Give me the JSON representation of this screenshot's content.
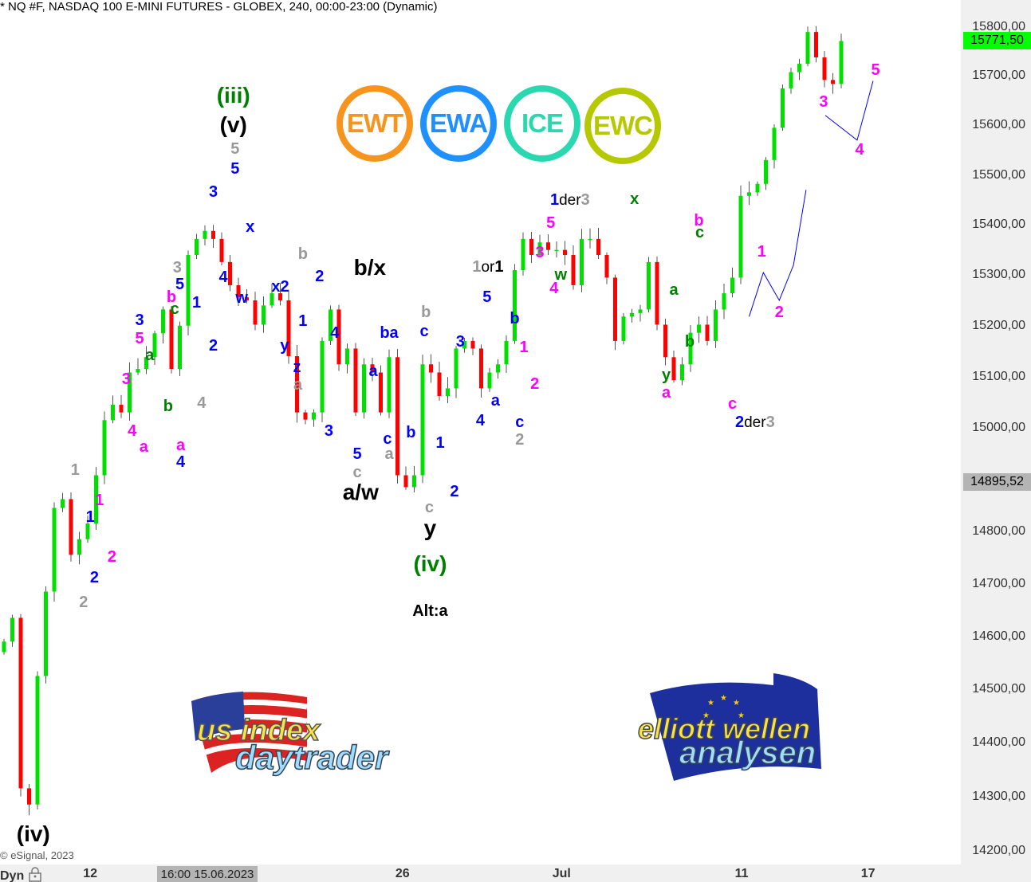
{
  "header": {
    "title": "* NQ #F, NASDAQ 100 E-MINI FUTURES - GLOBEX, 240, 00:00-23:00 (Dynamic)"
  },
  "footer": {
    "copyright": "© eSignal, 2023",
    "dyn_label": "Dyn",
    "lock_icon": "lock-icon"
  },
  "colors": {
    "up": "#00e000",
    "down": "#ff0000",
    "blue": "#0000ff",
    "magenta": "#ff00ff",
    "gray": "#999999",
    "green": "#008000",
    "black": "#000000",
    "last_price_tag": "#00ff00",
    "crosshair_tag": "#b4b4b4"
  },
  "logos": [
    {
      "text": "EWT",
      "color": "#f7941d"
    },
    {
      "text": "EWA",
      "color": "#1e90ff"
    },
    {
      "text": "ICE",
      "color": "#2ad8b0"
    },
    {
      "text": "EWC",
      "color": "#b5c800"
    }
  ],
  "brands": {
    "left": {
      "line1": "us index",
      "line2": "daytrader"
    },
    "right": {
      "line1": "elliott wellen",
      "line2": "analysen"
    }
  },
  "chart_data": {
    "type": "candlestick",
    "yscale": "log",
    "ylim": [
      14150,
      15900
    ],
    "y_ticks": [
      "15800,00",
      "15700,00",
      "15600,00",
      "15500,00",
      "15400,00",
      "15300,00",
      "15200,00",
      "15100,00",
      "15000,00",
      "14800,00",
      "14700,00",
      "14600,00",
      "14500,00",
      "14400,00",
      "14300,00",
      "14200,00"
    ],
    "y_tick_values": [
      15800,
      15700,
      15600,
      15500,
      15400,
      15300,
      15200,
      15100,
      15000,
      14800,
      14700,
      14600,
      14500,
      14400,
      14300,
      14200
    ],
    "last_price": {
      "label": "15771,50",
      "value": 15771.5
    },
    "crosshair_price": {
      "label": "14895,52",
      "value": 14895.52
    },
    "crosshair_time": "16:00 15.06.2023",
    "x_ticks": [
      {
        "label": "12",
        "bar": 10.3
      },
      {
        "label": "26",
        "bar": 47.6
      },
      {
        "label": "Jul",
        "bar": 66.6
      },
      {
        "label": "11",
        "bar": 88.1
      },
      {
        "label": "17",
        "bar": 103.2
      }
    ],
    "closes": [
      14590,
      14635,
      14315,
      14285,
      14525,
      14685,
      14845,
      14862,
      14755,
      14785,
      14815,
      14908,
      15015,
      15045,
      15030,
      15108,
      15115,
      15138,
      15185,
      15232,
      15115,
      15200,
      15340,
      15372,
      15388,
      15372,
      15326,
      15280,
      15256,
      15250,
      15202,
      15240,
      15264,
      15250,
      15140,
      15030,
      15016,
      15030,
      15170,
      15232,
      15124,
      15155,
      15030,
      15124,
      15108,
      15030,
      15138,
      14908,
      14885,
      14908,
      15124,
      15108,
      15062,
      15077,
      15155,
      15170,
      15155,
      15077,
      15108,
      15124,
      15170,
      15310,
      15372,
      15340,
      15365,
      15350,
      15350,
      15340,
      15280,
      15372,
      15372,
      15340,
      15295,
      15170,
      15218,
      15225,
      15232,
      15326,
      15202,
      15138,
      15093,
      15124,
      15186,
      15202,
      15170,
      15232,
      15264,
      15295,
      15458,
      15465,
      15482,
      15530,
      15595,
      15675,
      15708,
      15725,
      15790,
      15738,
      15692,
      15684,
      15771.5
    ],
    "trendlines": [
      [
        [
          89.0,
          15218
        ],
        [
          90.7,
          15305
        ],
        [
          92.6,
          15250
        ],
        [
          94.3,
          15320
        ],
        [
          95.8,
          15470
        ]
      ],
      [
        [
          98.1,
          15620
        ],
        [
          101.9,
          15570
        ],
        [
          103.8,
          15690
        ]
      ]
    ],
    "wave_labels": [
      {
        "parts": [
          {
            "t": "(iii)",
            "c": "green"
          }
        ],
        "bar": 27.4,
        "price": 15660,
        "big": true
      },
      {
        "parts": [
          {
            "t": "(v)",
            "c": "black"
          }
        ],
        "bar": 27.4,
        "price": 15600,
        "big": true
      },
      {
        "parts": [
          {
            "t": "5",
            "c": "gray"
          }
        ],
        "bar": 27.6,
        "price": 15552
      },
      {
        "parts": [
          {
            "t": "5",
            "c": "blue"
          }
        ],
        "bar": 27.6,
        "price": 15512
      },
      {
        "parts": [
          {
            "t": "3",
            "c": "blue"
          }
        ],
        "bar": 25,
        "price": 15465
      },
      {
        "parts": [
          {
            "t": "x",
            "c": "blue"
          }
        ],
        "bar": 29.4,
        "price": 15396
      },
      {
        "parts": [
          {
            "t": "4",
            "c": "blue"
          }
        ],
        "bar": 26.2,
        "price": 15296
      },
      {
        "parts": [
          {
            "t": "w",
            "c": "blue"
          }
        ],
        "bar": 28.4,
        "price": 15254
      },
      {
        "parts": [
          {
            "t": "3",
            "c": "gray"
          }
        ],
        "bar": 20.7,
        "price": 15315
      },
      {
        "parts": [
          {
            "t": "5",
            "c": "blue"
          }
        ],
        "bar": 21,
        "price": 15281
      },
      {
        "parts": [
          {
            "t": "b",
            "c": "magenta"
          }
        ],
        "bar": 20,
        "price": 15257
      },
      {
        "parts": [
          {
            "t": "c",
            "c": "green"
          }
        ],
        "bar": 20.4,
        "price": 15233
      },
      {
        "parts": [
          {
            "t": "1",
            "c": "blue"
          }
        ],
        "bar": 23,
        "price": 15245
      },
      {
        "parts": [
          {
            "t": "2",
            "c": "blue"
          }
        ],
        "bar": 25,
        "price": 15161
      },
      {
        "parts": [
          {
            "t": "4",
            "c": "gray"
          }
        ],
        "bar": 23.6,
        "price": 15048
      },
      {
        "parts": [
          {
            "t": "3",
            "c": "blue"
          }
        ],
        "bar": 16.2,
        "price": 15211
      },
      {
        "parts": [
          {
            "t": "5",
            "c": "magenta"
          }
        ],
        "bar": 16.2,
        "price": 15175
      },
      {
        "parts": [
          {
            "t": "a",
            "c": "green"
          }
        ],
        "bar": 17.4,
        "price": 15141
      },
      {
        "parts": [
          {
            "t": "3",
            "c": "magenta"
          }
        ],
        "bar": 14.6,
        "price": 15095
      },
      {
        "parts": [
          {
            "t": "b",
            "c": "green"
          }
        ],
        "bar": 19.6,
        "price": 15042
      },
      {
        "parts": [
          {
            "t": "4",
            "c": "magenta"
          }
        ],
        "bar": 15.3,
        "price": 14994
      },
      {
        "parts": [
          {
            "t": "a",
            "c": "magenta"
          }
        ],
        "bar": 16.7,
        "price": 14963
      },
      {
        "parts": [
          {
            "t": "a",
            "c": "magenta"
          }
        ],
        "bar": 21.1,
        "price": 14966
      },
      {
        "parts": [
          {
            "t": "4",
            "c": "blue"
          }
        ],
        "bar": 21.1,
        "price": 14934
      },
      {
        "parts": [
          {
            "t": "1",
            "c": "gray"
          }
        ],
        "bar": 8.5,
        "price": 14918
      },
      {
        "parts": [
          {
            "t": "1",
            "c": "magenta"
          }
        ],
        "bar": 11.4,
        "price": 14859
      },
      {
        "parts": [
          {
            "t": "1",
            "c": "blue"
          }
        ],
        "bar": 10.3,
        "price": 14827
      },
      {
        "parts": [
          {
            "t": "2",
            "c": "magenta"
          }
        ],
        "bar": 12.9,
        "price": 14751
      },
      {
        "parts": [
          {
            "t": "2",
            "c": "blue"
          }
        ],
        "bar": 10.8,
        "price": 14712
      },
      {
        "parts": [
          {
            "t": "2",
            "c": "gray"
          }
        ],
        "bar": 9.5,
        "price": 14664
      },
      {
        "parts": [
          {
            "t": "(iv)",
            "c": "black"
          }
        ],
        "bar": 3.5,
        "price": 14230,
        "big": true
      },
      {
        "parts": [
          {
            "t": "b",
            "c": "gray"
          }
        ],
        "bar": 35.7,
        "price": 15342
      },
      {
        "parts": [
          {
            "t": "2",
            "c": "blue"
          }
        ],
        "bar": 37.7,
        "price": 15298
      },
      {
        "parts": [
          {
            "t": "x2",
            "c": "blue"
          }
        ],
        "bar": 33,
        "price": 15277
      },
      {
        "parts": [
          {
            "t": "1",
            "c": "blue"
          }
        ],
        "bar": 35.7,
        "price": 15209
      },
      {
        "parts": [
          {
            "t": "y",
            "c": "blue"
          }
        ],
        "bar": 33.5,
        "price": 15160
      },
      {
        "parts": [
          {
            "t": "z",
            "c": "blue"
          }
        ],
        "bar": 35,
        "price": 15118
      },
      {
        "parts": [
          {
            "t": "a",
            "c": "gray"
          }
        ],
        "bar": 35.1,
        "price": 15084
      },
      {
        "parts": [
          {
            "t": "4",
            "c": "blue"
          }
        ],
        "bar": 39.5,
        "price": 15185
      },
      {
        "parts": [
          {
            "t": "b/x",
            "c": "black"
          }
        ],
        "bar": 43.7,
        "price": 15315,
        "big": true
      },
      {
        "parts": [
          {
            "t": "3",
            "c": "blue"
          }
        ],
        "bar": 38.8,
        "price": 14994
      },
      {
        "parts": [
          {
            "t": "5",
            "c": "blue"
          }
        ],
        "bar": 42.2,
        "price": 14949
      },
      {
        "parts": [
          {
            "t": "c",
            "c": "gray"
          }
        ],
        "bar": 42.2,
        "price": 14914
      },
      {
        "parts": [
          {
            "t": "a/w",
            "c": "black"
          }
        ],
        "bar": 42.6,
        "price": 14875,
        "big": true
      },
      {
        "parts": [
          {
            "t": "a",
            "c": "blue"
          }
        ],
        "bar": 44.1,
        "price": 15110
      },
      {
        "parts": [
          {
            "t": "ba",
            "c": "blue"
          }
        ],
        "bar": 46,
        "price": 15185
      },
      {
        "parts": [
          {
            "t": "c",
            "c": "blue"
          }
        ],
        "bar": 45.8,
        "price": 14979
      },
      {
        "parts": [
          {
            "t": "a",
            "c": "gray"
          }
        ],
        "bar": 46,
        "price": 14949
      },
      {
        "parts": [
          {
            "t": "b",
            "c": "blue"
          }
        ],
        "bar": 48.6,
        "price": 14990
      },
      {
        "parts": [
          {
            "t": "b",
            "c": "gray"
          }
        ],
        "bar": 50.4,
        "price": 15226
      },
      {
        "parts": [
          {
            "t": "c",
            "c": "blue"
          }
        ],
        "bar": 50.2,
        "price": 15188
      },
      {
        "parts": [
          {
            "t": "1",
            "c": "blue"
          }
        ],
        "bar": 52.1,
        "price": 14971
      },
      {
        "parts": [
          {
            "t": "c",
            "c": "gray"
          }
        ],
        "bar": 50.8,
        "price": 14846
      },
      {
        "parts": [
          {
            "t": "2",
            "c": "blue"
          }
        ],
        "bar": 53.8,
        "price": 14877
      },
      {
        "parts": [
          {
            "t": "y",
            "c": "black"
          }
        ],
        "bar": 50.9,
        "price": 14806,
        "big": true
      },
      {
        "parts": [
          {
            "t": "(iv)",
            "c": "green"
          }
        ],
        "bar": 50.9,
        "price": 14738,
        "big": true
      },
      {
        "parts": [
          {
            "t": "Alt:a",
            "c": "black"
          }
        ],
        "bar": 50.9,
        "price": 14648
      },
      {
        "parts": [
          {
            "t": "3",
            "c": "blue"
          }
        ],
        "bar": 54.5,
        "price": 15168
      },
      {
        "parts": [
          {
            "t": "5",
            "c": "blue"
          }
        ],
        "bar": 57.7,
        "price": 15256
      },
      {
        "parts": [
          {
            "t": "4",
            "c": "blue"
          }
        ],
        "bar": 56.9,
        "price": 15014
      },
      {
        "parts": [
          {
            "t": "a",
            "c": "blue"
          }
        ],
        "bar": 58.7,
        "price": 15053
      },
      {
        "parts": [
          {
            "t": "b",
            "c": "blue"
          }
        ],
        "bar": 61,
        "price": 15214
      },
      {
        "parts": [
          {
            "t": "1",
            "c": "magenta"
          }
        ],
        "bar": 62.1,
        "price": 15157
      },
      {
        "parts": [
          {
            "t": "2",
            "c": "magenta"
          }
        ],
        "bar": 63.4,
        "price": 15086
      },
      {
        "parts": [
          {
            "t": "c",
            "c": "blue"
          }
        ],
        "bar": 61.6,
        "price": 15011
      },
      {
        "parts": [
          {
            "t": "2",
            "c": "gray"
          }
        ],
        "bar": 61.6,
        "price": 14976
      },
      {
        "parts": [
          {
            "t": "1",
            "c": "gray"
          },
          {
            "t": "or",
            "c": "black",
            "sm": true
          },
          {
            "t": "1",
            "c": "black"
          }
        ],
        "bar": 57.8,
        "price": 15316
      },
      {
        "parts": [
          {
            "t": "3",
            "c": "magenta"
          }
        ],
        "bar": 64,
        "price": 15344
      },
      {
        "parts": [
          {
            "t": "5",
            "c": "magenta"
          }
        ],
        "bar": 65.3,
        "price": 15404
      },
      {
        "parts": [
          {
            "t": "w",
            "c": "green"
          }
        ],
        "bar": 66.5,
        "price": 15301
      },
      {
        "parts": [
          {
            "t": "4",
            "c": "magenta"
          }
        ],
        "bar": 65.7,
        "price": 15273
      },
      {
        "parts": [
          {
            "t": "1",
            "c": "blue"
          },
          {
            "t": "der",
            "c": "black",
            "sm": true
          },
          {
            "t": "3",
            "c": "gray"
          }
        ],
        "bar": 67.6,
        "price": 15449
      },
      {
        "parts": [
          {
            "t": "x",
            "c": "green"
          }
        ],
        "bar": 75.3,
        "price": 15451
      },
      {
        "parts": [
          {
            "t": "b",
            "c": "magenta"
          }
        ],
        "bar": 83,
        "price": 15409
      },
      {
        "parts": [
          {
            "t": "c",
            "c": "green"
          }
        ],
        "bar": 83.1,
        "price": 15384
      },
      {
        "parts": [
          {
            "t": "a",
            "c": "green"
          }
        ],
        "bar": 80,
        "price": 15270
      },
      {
        "parts": [
          {
            "t": "b",
            "c": "green"
          }
        ],
        "bar": 81.9,
        "price": 15169
      },
      {
        "parts": [
          {
            "t": "y",
            "c": "green"
          }
        ],
        "bar": 79.1,
        "price": 15103
      },
      {
        "parts": [
          {
            "t": "a",
            "c": "magenta"
          }
        ],
        "bar": 79.1,
        "price": 15069
      },
      {
        "parts": [
          {
            "t": "c",
            "c": "magenta"
          }
        ],
        "bar": 87,
        "price": 15047
      },
      {
        "parts": [
          {
            "t": "2",
            "c": "blue"
          },
          {
            "t": "der",
            "c": "black",
            "sm": true
          },
          {
            "t": "3",
            "c": "gray"
          }
        ],
        "bar": 89.7,
        "price": 15011
      },
      {
        "parts": [
          {
            "t": "1",
            "c": "magenta"
          }
        ],
        "bar": 90.5,
        "price": 15346
      },
      {
        "parts": [
          {
            "t": "2",
            "c": "magenta"
          }
        ],
        "bar": 92.6,
        "price": 15226
      },
      {
        "parts": [
          {
            "t": "3",
            "c": "magenta"
          }
        ],
        "bar": 97.9,
        "price": 15648
      },
      {
        "parts": [
          {
            "t": "4",
            "c": "magenta"
          }
        ],
        "bar": 102.2,
        "price": 15550
      },
      {
        "parts": [
          {
            "t": "5",
            "c": "magenta"
          }
        ],
        "bar": 104.1,
        "price": 15712
      }
    ]
  }
}
